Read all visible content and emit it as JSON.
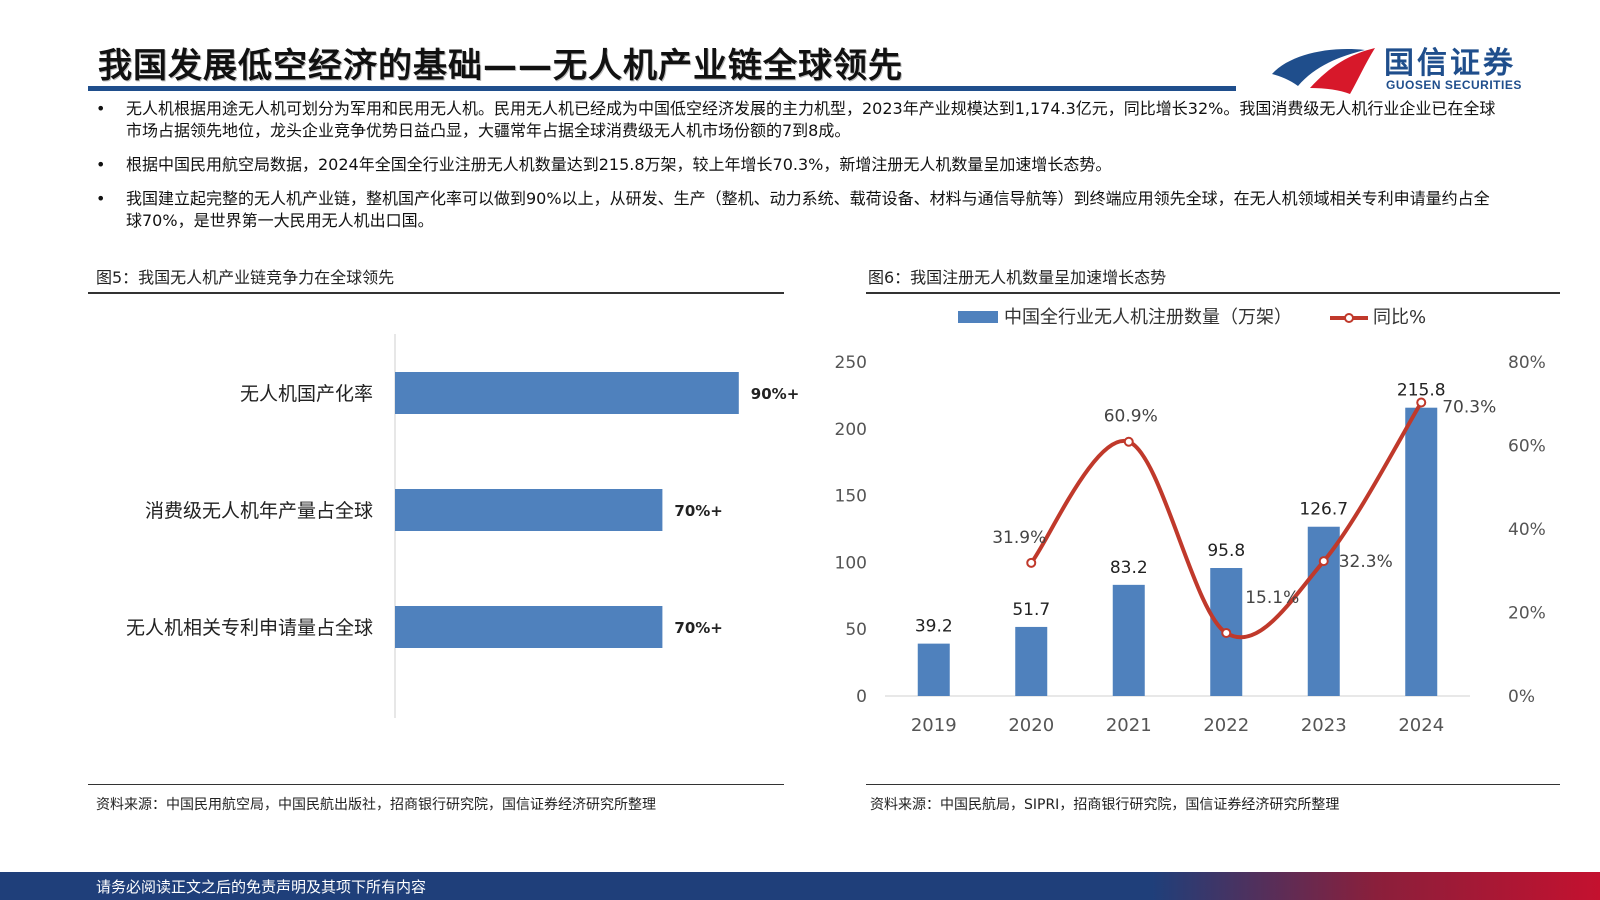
{
  "header": {
    "title": "我国发展低空经济的基础——无人机产业链全球领先",
    "logo_name": "国信证券",
    "logo_sub": "GUOSEN SECURITIES",
    "logo_colors": [
      "#1f4e8c",
      "#d7182a"
    ]
  },
  "bullets": [
    {
      "text": "无人机根据用途无人机可划分为军用和民用无人机。民用无人机已经成为中国低空经济发展的主力机型，2023年产业规模达到1,174.3亿元，同比增长32%。我国消费级无人机行业企业已在全球市场占据领先地位，龙头企业竞争优势日益凸显，大疆常年占据全球消费级无人机市场份额的7到8成。"
    },
    {
      "text": "根据中国民用航空局数据，2024年全国全行业注册无人机数量达到215.8万架，较上年增长70.3%，新增注册无人机数量呈加速增长态势。"
    },
    {
      "text": "我国建立起完整的无人机产业链，整机国产化率可以做到90%以上，从研发、生产（整机、动力系统、载荷设备、材料与通信导航等）到终端应用领先全球，在无人机领域相关专利申请量约占全球70%，是世界第一大民用无人机出口国。"
    }
  ],
  "figure5": {
    "caption": "图5：我国无人机产业链竞争力在全球领先",
    "source": "资料来源：中国民用航空局，中国民航出版社，招商银行研究院，国信证券经济研究所整理"
  },
  "figure6": {
    "caption": "图6：我国注册无人机数量呈加速增长态势",
    "source": "资料来源：中国民航局，SIPRI，招商银行研究院，国信证券经济研究所整理"
  },
  "footer": {
    "text": "请务必阅读正文之后的免责声明及其项下所有内容"
  },
  "chart_data": [
    {
      "type": "bar",
      "orientation": "horizontal",
      "categories": [
        "无人机国产化率",
        "消费级无人机年产量占全球",
        "无人机相关专利申请量占全球"
      ],
      "values": [
        90,
        70,
        70
      ],
      "data_labels": [
        "90%+",
        "70%+",
        "70%+"
      ],
      "xlim": [
        0,
        100
      ],
      "color": "#4f81bd",
      "grid": false
    },
    {
      "type": "bar+line",
      "categories": [
        "2019",
        "2020",
        "2021",
        "2022",
        "2023",
        "2024"
      ],
      "series": [
        {
          "name": "中国全行业无人机注册数量（万架）",
          "type": "bar",
          "axis": "left",
          "values": [
            39.2,
            51.7,
            83.2,
            95.8,
            126.7,
            215.8
          ],
          "data_labels": [
            "39.2",
            "51.7",
            "83.2",
            "95.8",
            "126.7",
            "215.8"
          ],
          "color": "#4f81bd"
        },
        {
          "name": "同比%",
          "type": "line",
          "axis": "right",
          "values": [
            null,
            31.9,
            60.9,
            15.1,
            32.3,
            70.3
          ],
          "data_labels": [
            "",
            "31.9%",
            "60.9%",
            "15.1%",
            "32.3%",
            "70.3%"
          ],
          "color": "#c0392b"
        }
      ],
      "y_left": {
        "min": 0,
        "max": 250,
        "ticks": [
          "0",
          "50",
          "100",
          "150",
          "200",
          "250"
        ]
      },
      "y_right": {
        "min": 0,
        "max": 80,
        "ticks": [
          "0%",
          "20%",
          "40%",
          "60%",
          "80%"
        ]
      },
      "legend_position": "top",
      "grid": false
    }
  ]
}
